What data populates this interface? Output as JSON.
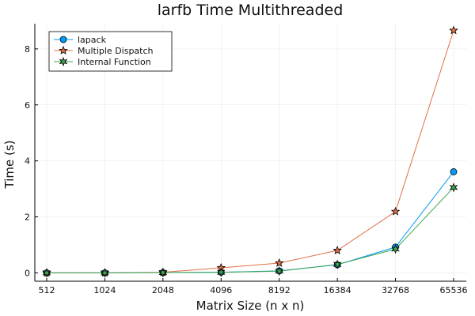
{
  "chart_data": {
    "type": "line",
    "title": "larfb Time Multithreaded",
    "xlabel": "Matrix Size (n x n)",
    "ylabel": "Time (s)",
    "categories": [
      "512",
      "1024",
      "2048",
      "4096",
      "8192",
      "16384",
      "32768",
      "65536"
    ],
    "ylim": [
      -0.3,
      8.9
    ],
    "yticks": [
      0,
      2,
      4,
      6,
      8
    ],
    "grid": true,
    "legend_position": "top-left",
    "series": [
      {
        "name": "lapack",
        "values": [
          0.0,
          0.0,
          0.01,
          0.02,
          0.07,
          0.29,
          0.92,
          3.61
        ],
        "color": "#009AF9",
        "marker": "circle"
      },
      {
        "name": "Multiple Dispatch",
        "values": [
          0.0,
          0.0,
          0.02,
          0.18,
          0.35,
          0.8,
          2.19,
          8.66
        ],
        "color": "#E26F46",
        "marker": "star5"
      },
      {
        "name": "Internal Function",
        "values": [
          0.0,
          0.0,
          0.01,
          0.02,
          0.06,
          0.3,
          0.85,
          3.05
        ],
        "color": "#3DA44D",
        "marker": "star6"
      }
    ]
  }
}
